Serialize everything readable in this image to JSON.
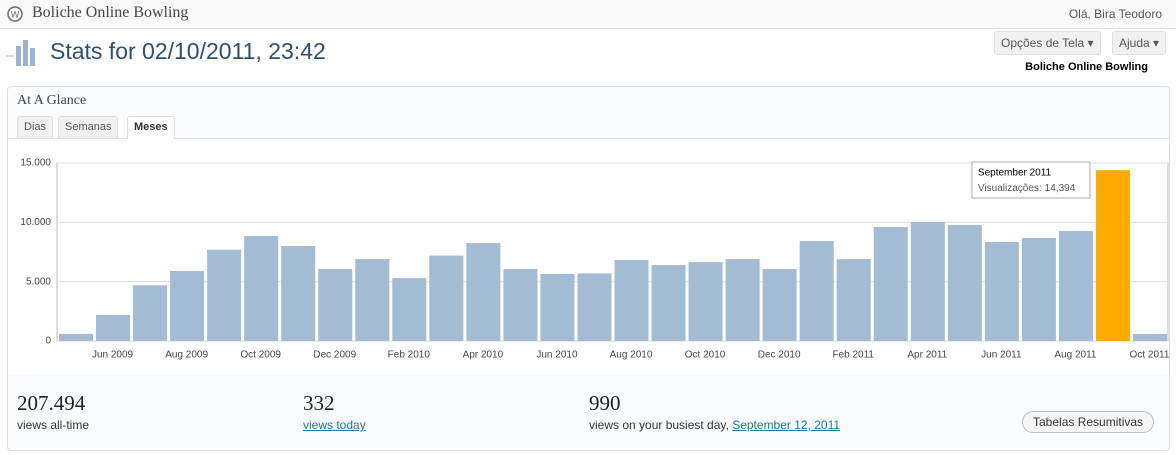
{
  "header": {
    "site_title": "Boliche Online Bowling",
    "greeting": "Olá, Bira Teodoro"
  },
  "page_title": "Stats for 02/10/2011, 23:42",
  "buttons": {
    "screen_options": "Opções de Tela",
    "help": "Ajuda"
  },
  "blog_name": "Boliche Online Bowling",
  "panel": {
    "title": "At A Glance",
    "tabs": [
      "Dias",
      "Semanas",
      "Meses"
    ]
  },
  "chart_data": {
    "type": "bar",
    "categories": [
      null,
      "Jun 2009",
      null,
      "Aug 2009",
      null,
      "Oct 2009",
      null,
      "Dec 2009",
      null,
      "Feb 2010",
      null,
      "Apr 2010",
      null,
      "Jun 2010",
      null,
      "Aug 2010",
      null,
      "Oct 2010",
      null,
      "Dec 2010",
      null,
      "Feb 2011",
      null,
      "Apr 2011",
      null,
      "Jun 2011",
      null,
      "Aug 2011",
      null,
      "Oct 2011"
    ],
    "values": [
      600,
      2200,
      4700,
      5900,
      7700,
      8850,
      8000,
      6070,
      6900,
      5300,
      7200,
      8250,
      6070,
      5650,
      5700,
      6830,
      6400,
      6650,
      6900,
      6070,
      8430,
      6900,
      9600,
      10030,
      9780,
      8350,
      8680,
      9270,
      14394,
      600
    ],
    "colors": [
      "#a4bbd4",
      "#a4bbd4",
      "#a4bbd4",
      "#a4bbd4",
      "#a4bbd4",
      "#a4bbd4",
      "#a4bbd4",
      "#a4bbd4",
      "#a4bbd4",
      "#a4bbd4",
      "#a4bbd4",
      "#a4bbd4",
      "#a4bbd4",
      "#a4bbd4",
      "#a4bbd4",
      "#a4bbd4",
      "#a4bbd4",
      "#a4bbd4",
      "#a4bbd4",
      "#a4bbd4",
      "#a4bbd4",
      "#a4bbd4",
      "#a4bbd4",
      "#a4bbd4",
      "#a4bbd4",
      "#a4bbd4",
      "#a4bbd4",
      "#a4bbd4",
      "#ffaa00",
      "#a4bbd4"
    ],
    "ylim": [
      0,
      15000
    ],
    "yticks": [
      0,
      {
        "value": 5000,
        "label": "5.000"
      },
      {
        "value": 10000,
        "label": "10.000"
      },
      {
        "value": 15000,
        "label": "15.000"
      }
    ],
    "grid": true,
    "tooltip": {
      "title": "September 2011",
      "label": "Visualizações:",
      "value_text": "14,394"
    }
  },
  "summary": [
    {
      "number": "207.494",
      "caption": "views all-time"
    },
    {
      "number": "332",
      "caption": "views today"
    },
    {
      "number": "990",
      "caption": "views on your busiest day,",
      "link": "September 12, 2011"
    }
  ],
  "summary_button": "Tabelas Resumitivas"
}
